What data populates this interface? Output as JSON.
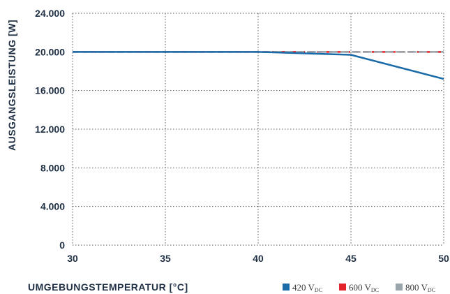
{
  "chart_data": {
    "type": "line",
    "xlabel": "UMGEBUNGSTEMPERATUR [°C]",
    "ylabel": "AUSGANGSLEISTUNG [W]",
    "xlim": [
      30,
      50
    ],
    "ylim": [
      0,
      24000
    ],
    "x_ticks": [
      30,
      35,
      40,
      45,
      50
    ],
    "x_tick_labels": [
      "30",
      "35",
      "40",
      "45",
      "50"
    ],
    "y_ticks": [
      0,
      4000,
      8000,
      12000,
      16000,
      20000,
      24000
    ],
    "y_tick_labels": [
      "0",
      "4.000",
      "8.000",
      "12.000",
      "16.000",
      "20.000",
      "24.000"
    ],
    "grid": true,
    "legend_position": "bottom-right",
    "series": [
      {
        "name": "420 V",
        "subscript": "DC",
        "color": "#1a6aa8",
        "dashed": false,
        "x": [
          30,
          35,
          40,
          45,
          50
        ],
        "y": [
          20000,
          20000,
          20000,
          19700,
          17200
        ]
      },
      {
        "name": "600 V",
        "subscript": "DC",
        "color": "#e3242b",
        "dashed": true,
        "x": [
          30,
          35,
          40,
          45,
          50
        ],
        "y": [
          20000,
          20000,
          20000,
          20000,
          20000
        ]
      },
      {
        "name": "800 V",
        "subscript": "DC",
        "color": "#9aa5ab",
        "dashed": true,
        "x": [
          30,
          35,
          40,
          45,
          50
        ],
        "y": [
          20000,
          20000,
          20000,
          20000,
          20000
        ]
      }
    ]
  }
}
